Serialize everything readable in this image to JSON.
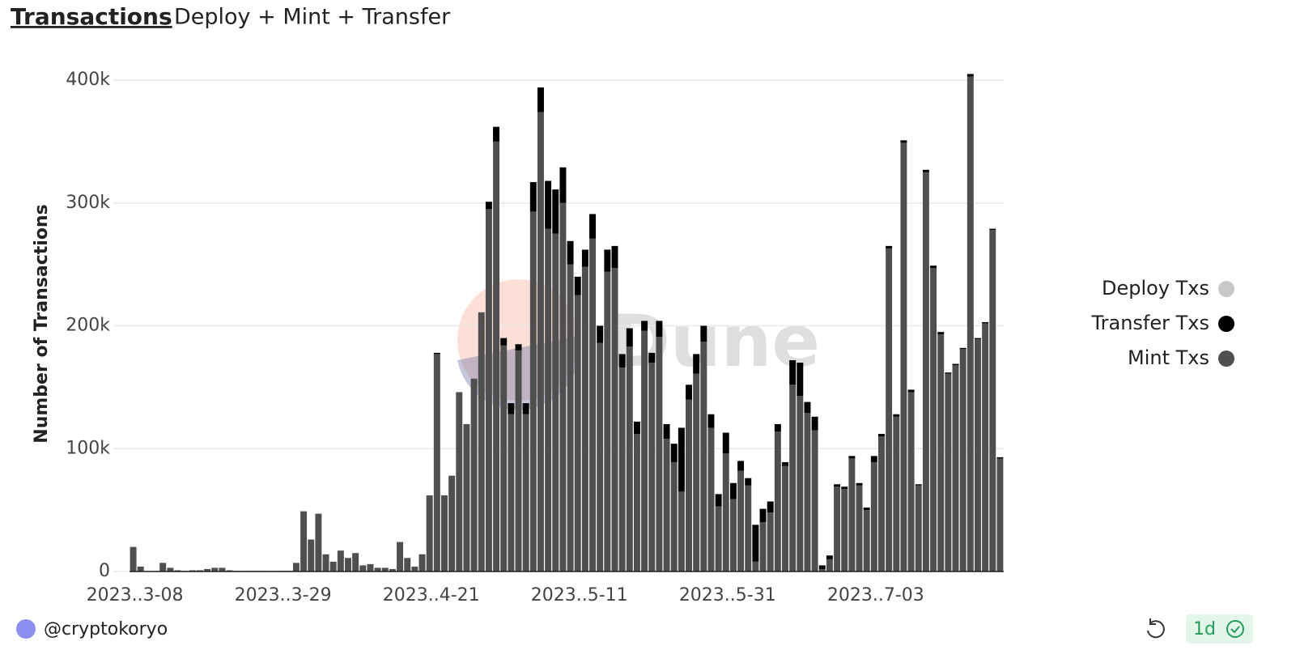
{
  "chart_data": {
    "type": "stacked_bar",
    "title": "Transactions",
    "subtitle": "Deploy + Mint + Transfer",
    "y_label": "Number of Transactions",
    "watermark": "Dune",
    "ylim": [
      0,
      400000
    ],
    "yticks": [
      0,
      {
        "value": 100000,
        "label": "100k"
      },
      {
        "value": 200000,
        "label": "200k"
      },
      {
        "value": 300000,
        "label": "300k"
      },
      {
        "value": 400000,
        "label": "400k"
      }
    ],
    "grid": true,
    "legend": "right",
    "categories": [
      "2023..3-08",
      null,
      null,
      null,
      null,
      null,
      null,
      null,
      null,
      null,
      null,
      null,
      null,
      null,
      null,
      null,
      null,
      null,
      null,
      null,
      "2023..3-29",
      null,
      null,
      null,
      null,
      null,
      null,
      null,
      null,
      null,
      null,
      null,
      null,
      null,
      null,
      null,
      null,
      null,
      null,
      null,
      "2023..4-21",
      null,
      null,
      null,
      null,
      null,
      null,
      null,
      null,
      null,
      null,
      null,
      null,
      null,
      null,
      null,
      null,
      null,
      null,
      null,
      "2023..5-11",
      null,
      null,
      null,
      null,
      null,
      null,
      null,
      null,
      null,
      null,
      null,
      null,
      null,
      null,
      null,
      null,
      null,
      null,
      null,
      "2023..5-31",
      null,
      null,
      null,
      null,
      null,
      null,
      null,
      null,
      null,
      null,
      null,
      null,
      null,
      null,
      null,
      null,
      null,
      null,
      null,
      "2023..7-03",
      null,
      null,
      null,
      null,
      null,
      null,
      null,
      null,
      null,
      null,
      null,
      null,
      null,
      null,
      null,
      null,
      null
    ],
    "series": [
      {
        "name": "Mint Txs",
        "color": "#4f4f4f",
        "values": [
          20000,
          4000,
          0,
          0,
          7000,
          3000,
          1000,
          500,
          1000,
          1000,
          2000,
          3000,
          3000,
          1000,
          500,
          500,
          500,
          500,
          500,
          500,
          500,
          500,
          7000,
          49000,
          26000,
          47000,
          14000,
          8000,
          17000,
          11000,
          15000,
          5000,
          6000,
          3000,
          3000,
          2000,
          24000,
          11000,
          4000,
          14000,
          62000,
          177000,
          62000,
          78000,
          146000,
          120000,
          157000,
          211000,
          295000,
          350000,
          184000,
          128000,
          180000,
          128000,
          293000,
          374000,
          279000,
          275000,
          300000,
          250000,
          225000,
          248000,
          271000,
          186000,
          244000,
          247000,
          166000,
          183000,
          112000,
          196000,
          170000,
          191000,
          108000,
          89000,
          65000,
          140000,
          161000,
          187000,
          117000,
          53000,
          96000,
          59000,
          82000,
          70000,
          8000,
          40000,
          48000,
          114000,
          86000,
          152000,
          143000,
          129000,
          115000,
          2000,
          10000,
          69000,
          67000,
          92000,
          70000,
          50000,
          89000,
          110000,
          263000,
          126000,
          349000,
          146000,
          70000,
          325000,
          247000,
          193000,
          161000,
          168000,
          181000,
          403000,
          189000,
          202000,
          278000,
          92000
        ]
      },
      {
        "name": "Transfer Txs",
        "color": "#000000",
        "values": [
          0,
          0,
          0,
          0,
          0,
          0,
          0,
          0,
          0,
          0,
          0,
          0,
          0,
          0,
          0,
          0,
          0,
          0,
          0,
          0,
          0,
          0,
          0,
          0,
          0,
          0,
          0,
          0,
          0,
          0,
          0,
          0,
          0,
          0,
          0,
          0,
          0,
          0,
          0,
          0,
          0,
          1000,
          0,
          0,
          0,
          0,
          0,
          0,
          6000,
          12000,
          6000,
          9000,
          5000,
          9000,
          24000,
          20000,
          39000,
          36000,
          29000,
          19000,
          15000,
          14000,
          20000,
          14000,
          18000,
          18000,
          11000,
          15000,
          10000,
          8000,
          8000,
          13000,
          12000,
          15000,
          52000,
          12000,
          16000,
          13000,
          11000,
          10000,
          17000,
          13000,
          8000,
          6000,
          30000,
          11000,
          9000,
          6000,
          3000,
          20000,
          27000,
          9000,
          11000,
          3000,
          3000,
          2000,
          2000,
          2000,
          2000,
          2000,
          5000,
          2000,
          2000,
          2000,
          2000,
          2000,
          1000,
          2000,
          2000,
          2000,
          1000,
          1000,
          1000,
          2000,
          1000,
          1000,
          1000,
          1000
        ]
      },
      {
        "name": "Deploy Txs",
        "color": "#c8c8c8",
        "values": [
          0,
          0,
          0,
          0,
          0,
          0,
          0,
          0,
          0,
          0,
          0,
          0,
          0,
          0,
          0,
          0,
          0,
          0,
          0,
          0,
          0,
          0,
          0,
          0,
          0,
          0,
          0,
          0,
          0,
          0,
          0,
          0,
          0,
          0,
          0,
          0,
          0,
          0,
          0,
          0,
          0,
          0,
          0,
          0,
          0,
          0,
          0,
          0,
          0,
          0,
          0,
          0,
          0,
          0,
          0,
          0,
          0,
          0,
          0,
          0,
          0,
          0,
          0,
          0,
          0,
          0,
          0,
          0,
          0,
          0,
          0,
          0,
          0,
          0,
          0,
          0,
          0,
          0,
          0,
          0,
          0,
          0,
          0,
          0,
          0,
          0,
          0,
          0,
          0,
          0,
          0,
          0,
          0,
          0,
          0,
          0,
          0,
          0,
          0,
          0,
          0,
          0,
          0,
          0,
          0,
          0,
          0,
          0,
          0,
          0,
          0,
          0,
          0,
          0,
          0,
          0,
          0,
          0
        ]
      }
    ]
  },
  "footer": {
    "author": "@cryptokoryo",
    "refresh": "1d"
  }
}
